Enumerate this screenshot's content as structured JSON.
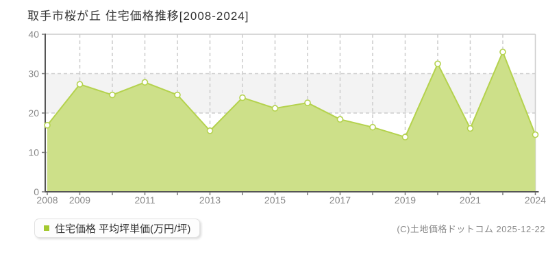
{
  "chart_data": {
    "type": "area",
    "title": "取手市桜が丘 住宅価格推移[2008-2024]",
    "xlabel": "",
    "ylabel": "",
    "ylim": [
      0,
      40
    ],
    "yticks": [
      0,
      10,
      20,
      30,
      40
    ],
    "categories": [
      "2008",
      "2009",
      "2010",
      "2011",
      "2012",
      "2013",
      "2014",
      "2015",
      "2016",
      "2017",
      "2018",
      "2019",
      "2020",
      "2021",
      "2022",
      "2024"
    ],
    "values": [
      16.9,
      27.3,
      24.6,
      27.8,
      24.6,
      15.5,
      23.9,
      21.2,
      22.6,
      18.4,
      16.4,
      13.9,
      32.5,
      16.1,
      35.5,
      14.5
    ],
    "series_name": "住宅価格 平均坪単価(万円/坪)",
    "xtick_labels": [
      "2008",
      "2009",
      "2011",
      "2013",
      "2015",
      "2017",
      "2019",
      "2021",
      "2024"
    ],
    "xtick_category_indexes": [
      0,
      1,
      3,
      5,
      7,
      9,
      11,
      13,
      15
    ],
    "grid": true,
    "grid_style": "dashed",
    "legend_position": "bottom-left",
    "colors": {
      "area_fill": "#cde089",
      "line": "#b4d24d",
      "marker_fill": "#ffffff",
      "marker_stroke": "#b4d24d",
      "band_gray": "#f3f3f3",
      "gridline": "#cccccc",
      "plot_border": "#cccccc",
      "axis": "#555555",
      "tick": "#777777",
      "tick_label": "#888888",
      "title_text": "#333333",
      "legend_marker": "#a4c930"
    }
  },
  "legend": {
    "label": "住宅価格 平均坪単価(万円/坪)"
  },
  "footer": {
    "copyright": "(C)土地価格ドットコム 2025-12-22"
  }
}
